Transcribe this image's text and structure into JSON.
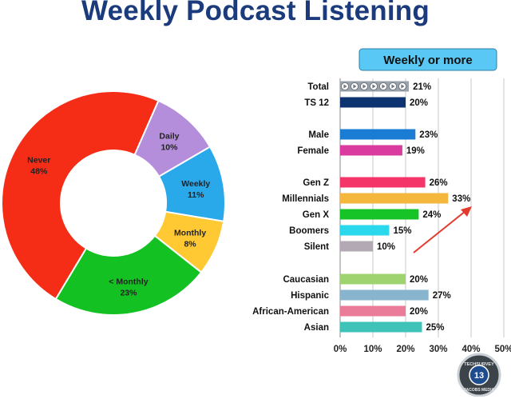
{
  "title": "Weekly Podcast Listening",
  "chart_data": [
    {
      "type": "pie",
      "donut": true,
      "slices": [
        {
          "label": "Never",
          "value": 48,
          "text": "48%",
          "color": "#f52d17"
        },
        {
          "label": "Daily",
          "value": 10,
          "text": "10%",
          "color": "#b58edb"
        },
        {
          "label": "Weekly",
          "value": 11,
          "text": "11%",
          "color": "#29a8ea"
        },
        {
          "label": "Monthly",
          "value": 8,
          "text": "8%",
          "color": "#ffc934"
        },
        {
          "label": "< Monthly",
          "value": 23,
          "text": "23%",
          "color": "#13c122"
        }
      ]
    },
    {
      "type": "bar",
      "orientation": "horizontal",
      "legend_title": "Weekly or more",
      "xlim": [
        0,
        50
      ],
      "x_ticks": [
        "0%",
        "10%",
        "20%",
        "30%",
        "40%",
        "50%"
      ],
      "grid": true,
      "bars": [
        {
          "label": "Total",
          "value": 21,
          "text": "21%",
          "color": "#9aa1a8",
          "pattern": "play-icons"
        },
        {
          "label": "TS 12",
          "value": 20,
          "text": "20%",
          "color": "#0d3471"
        },
        {
          "label": "Male",
          "value": 23,
          "text": "23%",
          "color": "#1a7dd3"
        },
        {
          "label": "Female",
          "value": 19,
          "text": "19%",
          "color": "#d93c9e"
        },
        {
          "label": "Gen Z",
          "value": 26,
          "text": "26%",
          "color": "#f4356a"
        },
        {
          "label": "Millennials",
          "value": 33,
          "text": "33%",
          "color": "#f4b63c"
        },
        {
          "label": "Gen X",
          "value": 24,
          "text": "24%",
          "color": "#17c427"
        },
        {
          "label": "Boomers",
          "value": 15,
          "text": "15%",
          "color": "#2ad8ec"
        },
        {
          "label": "Silent",
          "value": 10,
          "text": "10%",
          "color": "#b3a9b4"
        },
        {
          "label": "Caucasian",
          "value": 20,
          "text": "20%",
          "color": "#9fd36f"
        },
        {
          "label": "Hispanic",
          "value": 27,
          "text": "27%",
          "color": "#88b5cd"
        },
        {
          "label": "African-American",
          "value": 20,
          "text": "20%",
          "color": "#ea7c9a"
        },
        {
          "label": "Asian",
          "value": 25,
          "text": "25%",
          "color": "#3fc3b9"
        }
      ],
      "annotation": "trend-arrow",
      "annotation_color": "#e23a2c"
    }
  ],
  "logo": {
    "top_text": "TECHSURVEY",
    "bottom_text": "JACOBS MEDIA",
    "number": "13"
  },
  "colors": {
    "title": "#1b3b7c",
    "legend_box": "#5ac8f5",
    "grid": "#c8c8c8"
  }
}
